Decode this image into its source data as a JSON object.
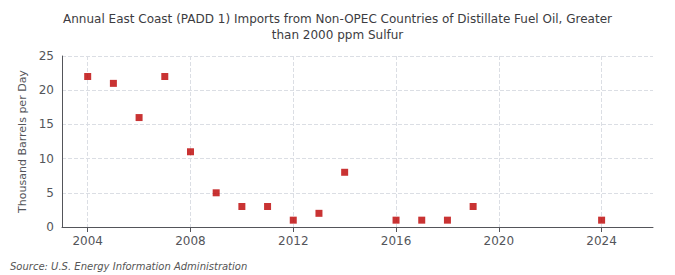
{
  "chart_data": {
    "type": "scatter",
    "title": "Annual East Coast (PADD 1) Imports from Non-OPEC Countries of Distillate Fuel Oil, Greater\nthan 2000 ppm Sulfur",
    "ylabel": "Thousand Barrels per Day",
    "annotations": [
      "Source: U.S. Energy Information Administration"
    ],
    "x": [
      2004,
      2005,
      2006,
      2007,
      2008,
      2009,
      2010,
      2011,
      2012,
      2013,
      2014,
      2016,
      2017,
      2018,
      2019,
      2024
    ],
    "values": [
      22,
      21,
      16,
      22,
      11,
      5,
      3,
      3,
      1,
      2,
      8,
      1,
      1,
      1,
      3,
      1
    ],
    "color": "#bb0000",
    "marker": "square",
    "xlim": [
      2003,
      2026
    ],
    "xticks": [
      2004,
      2008,
      2012,
      2016,
      2020,
      2024
    ],
    "ylim": [
      0,
      25
    ],
    "yticks": [
      0,
      5,
      10,
      15,
      20,
      25
    ],
    "grid": true
  }
}
